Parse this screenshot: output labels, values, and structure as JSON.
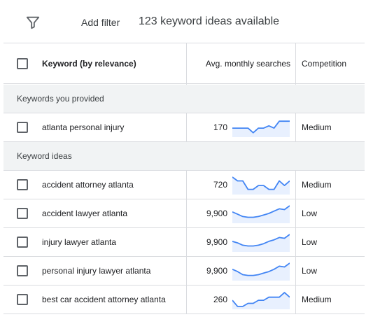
{
  "toolbar": {
    "filter_icon": "filter-funnel-icon",
    "add_filter_label": "Add filter",
    "ideas_count_text": "123 keyword ideas available"
  },
  "table": {
    "columns": {
      "keyword": "Keyword (by relevance)",
      "searches": "Avg. monthly searches",
      "competition": "Competition"
    },
    "provided_section_label": "Keywords you provided",
    "ideas_section_label": "Keyword ideas",
    "provided_rows": [
      {
        "keyword": "atlanta personal injury",
        "searches": "170",
        "competition": "Medium",
        "trend": [
          0.45,
          0.45,
          0.45,
          0.45,
          0.15,
          0.45,
          0.45,
          0.6,
          0.45,
          0.9,
          0.9,
          0.9
        ]
      }
    ],
    "idea_rows": [
      {
        "keyword": "accident attorney atlanta",
        "searches": "720",
        "competition": "Medium",
        "trend": [
          1.0,
          0.75,
          0.75,
          0.2,
          0.2,
          0.45,
          0.45,
          0.2,
          0.2,
          0.75,
          0.45,
          0.75
        ]
      },
      {
        "keyword": "accident lawyer atlanta",
        "searches": "9,900",
        "competition": "Low",
        "trend": [
          0.6,
          0.45,
          0.3,
          0.25,
          0.25,
          0.3,
          0.4,
          0.5,
          0.65,
          0.8,
          0.75,
          1.0
        ]
      },
      {
        "keyword": "injury lawyer atlanta",
        "searches": "9,900",
        "competition": "Low",
        "trend": [
          0.55,
          0.45,
          0.3,
          0.25,
          0.25,
          0.3,
          0.4,
          0.55,
          0.65,
          0.8,
          0.75,
          1.0
        ]
      },
      {
        "keyword": "personal injury lawyer atlanta",
        "searches": "9,900",
        "competition": "Low",
        "trend": [
          0.6,
          0.45,
          0.25,
          0.2,
          0.2,
          0.25,
          0.35,
          0.45,
          0.6,
          0.8,
          0.75,
          1.0
        ]
      },
      {
        "keyword": "best car accident attorney atlanta",
        "searches": "260",
        "competition": "Medium",
        "trend": [
          0.45,
          0.05,
          0.05,
          0.25,
          0.25,
          0.45,
          0.45,
          0.65,
          0.65,
          0.65,
          0.95,
          0.65
        ]
      }
    ]
  },
  "colors": {
    "sparkline_line": "#4285f4",
    "sparkline_fill": "#e8f0fe",
    "border": "#dadce0",
    "section_bg": "#f1f3f4"
  }
}
